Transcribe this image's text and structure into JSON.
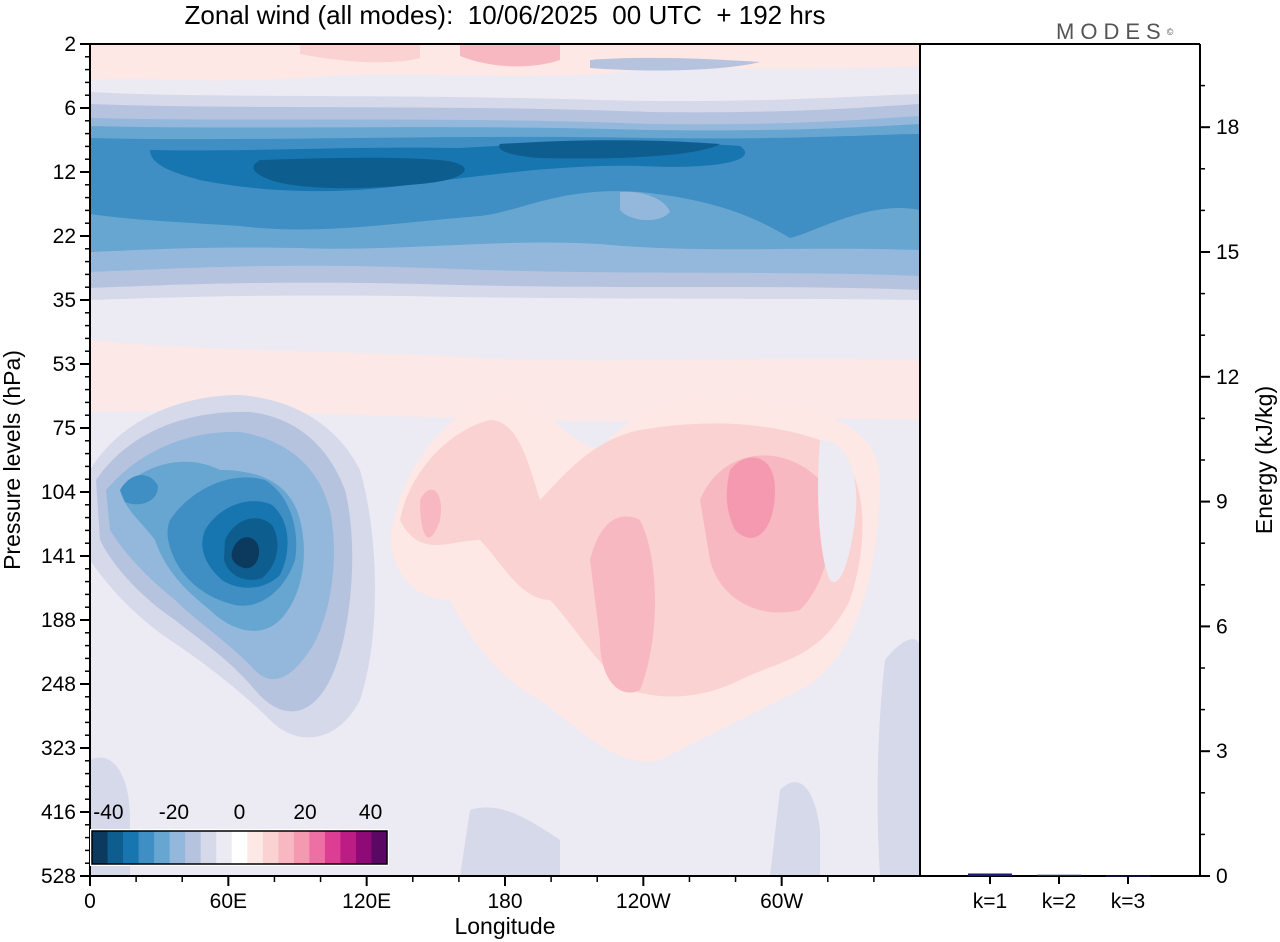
{
  "title": "Zonal wind (all modes):  10/06/2025  00 UTC  + 192 hrs",
  "brand": "MODES",
  "brand_mark": "©",
  "chart_data": [
    {
      "type": "heatmap",
      "xlabel": "Longitude",
      "ylabel": "Pressure levels (hPa)",
      "x_ticks": [
        "0",
        "60E",
        "120E",
        "180",
        "120W",
        "60W"
      ],
      "y_levels": [
        "2",
        "6",
        "12",
        "22",
        "35",
        "53",
        "75",
        "104",
        "141",
        "188",
        "248",
        "323",
        "416",
        "528"
      ],
      "colorbar": {
        "ticks": [
          "-40",
          "-20",
          "0",
          "20",
          "40"
        ],
        "range": [
          -45,
          45
        ],
        "colors": [
          "#0b3a5e",
          "#0d5d8f",
          "#1776b0",
          "#3f8fc4",
          "#67a6d1",
          "#93b8dc",
          "#b6c3df",
          "#d6d9ea",
          "#ecebf3",
          "#ffffff",
          "#fde8e6",
          "#fbd2d2",
          "#f8b8c1",
          "#f599b1",
          "#ee6fa3",
          "#dd3e94",
          "#bd1c85",
          "#8f0a76",
          "#5a0863"
        ]
      },
      "features": [
        {
          "name": "stratospheric easterly jet",
          "lon": [
            0,
            360
          ],
          "level": [
            8,
            28
          ],
          "value": -28
        },
        {
          "name": "upper easterly core",
          "lon": [
            70,
            280
          ],
          "level": [
            10,
            16
          ],
          "value": -38
        },
        {
          "name": "easterly core 60E",
          "lon": [
            40,
            100
          ],
          "level": [
            90,
            220
          ],
          "value": -40
        },
        {
          "name": "westerly 60W",
          "lon": [
            280,
            320
          ],
          "level": [
            95,
            160
          ],
          "value": 20
        },
        {
          "name": "westerly 120W",
          "lon": [
            220,
            250
          ],
          "level": [
            120,
            260
          ],
          "value": 12
        }
      ]
    },
    {
      "type": "bar",
      "categories": [
        "k=1",
        "k=2",
        "k=3"
      ],
      "values": [
        0.06,
        0.03,
        0.01
      ],
      "ylabel": "Energy (kJ/kg)",
      "ylim": [
        0,
        20
      ],
      "y_ticks": [
        "0",
        "3",
        "6",
        "9",
        "12",
        "15",
        "18"
      ]
    }
  ]
}
